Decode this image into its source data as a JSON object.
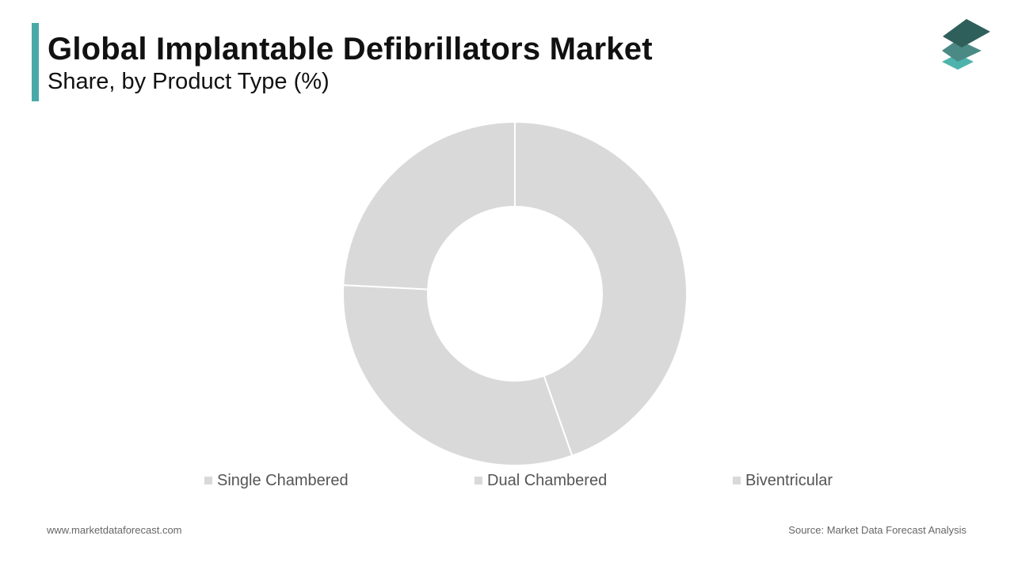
{
  "header": {
    "title": "Global Implantable Defibrillators Market",
    "subtitle": "Share, by Product Type (%)"
  },
  "colors": {
    "accent": "#4aa9a8",
    "slice": "#d9d9d9",
    "slice_border": "#ffffff",
    "legend_swatch": "#d9d9d9",
    "logo_top": "#2f5f5a",
    "logo_middle": "#4b8a84",
    "logo_bottom": "#4fb3ad"
  },
  "chart_data": {
    "type": "pie",
    "variant": "donut",
    "title": "Global Implantable Defibrillators Market",
    "subtitle": "Share, by Product Type (%)",
    "categories": [
      "Single Chambered",
      "Dual Chambered",
      "Biventricular"
    ],
    "values": [
      44.6,
      31.2,
      24.2
    ],
    "legend_position": "bottom",
    "data_labels": false
  },
  "footer": {
    "website": "www.marketdataforecast.com",
    "source": "Source: Market Data Forecast Analysis"
  },
  "logo": {
    "icon": "stacked-layers-icon"
  }
}
